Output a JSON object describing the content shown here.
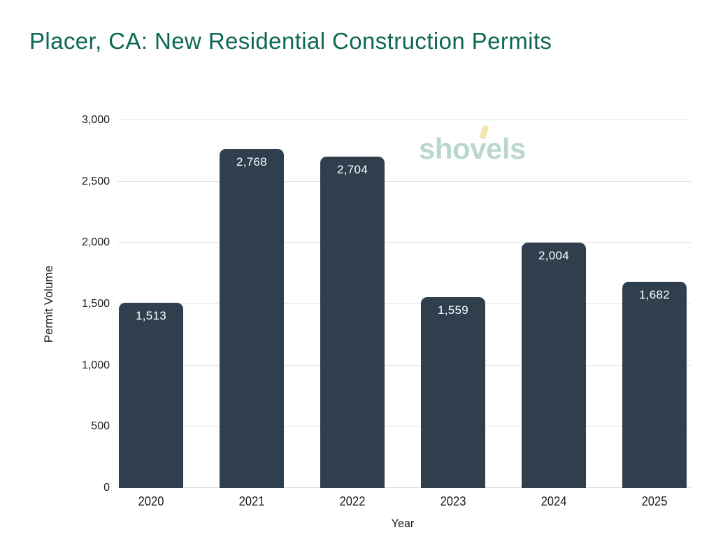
{
  "title": {
    "text": "Placer, CA: New Residential Construction Permits",
    "color": "#0e6853"
  },
  "watermark": {
    "prefix": "sho",
    "v": "v",
    "suffix": "els",
    "color": "#bad7cf",
    "accent_color": "#f5e6b0"
  },
  "chart_data": {
    "type": "bar",
    "title": "Placer, CA: New Residential Construction Permits",
    "categories": [
      "2020",
      "2021",
      "2022",
      "2023",
      "2024",
      "2025"
    ],
    "values": [
      1513,
      2768,
      2704,
      1559,
      2004,
      1682
    ],
    "value_labels": [
      "1,513",
      "2,768",
      "2,704",
      "1,559",
      "2,004",
      "1,682"
    ],
    "xlabel": "Year",
    "ylabel": "Permit Volume",
    "ylim": [
      0,
      3000
    ],
    "yticks": [
      0,
      500,
      1000,
      1500,
      2000,
      2500,
      3000
    ],
    "ytick_labels": [
      "0",
      "500",
      "1,000",
      "1,500",
      "2,000",
      "2,500",
      "3,000"
    ],
    "grid": true,
    "legend": false,
    "bar_color": "#2f3f4e",
    "bar_label_color": "#ffffff",
    "grid_color": "#e2e2e2",
    "zero_line_color": "#d9d9d9",
    "axis_text_color": "#1c1c1c"
  }
}
